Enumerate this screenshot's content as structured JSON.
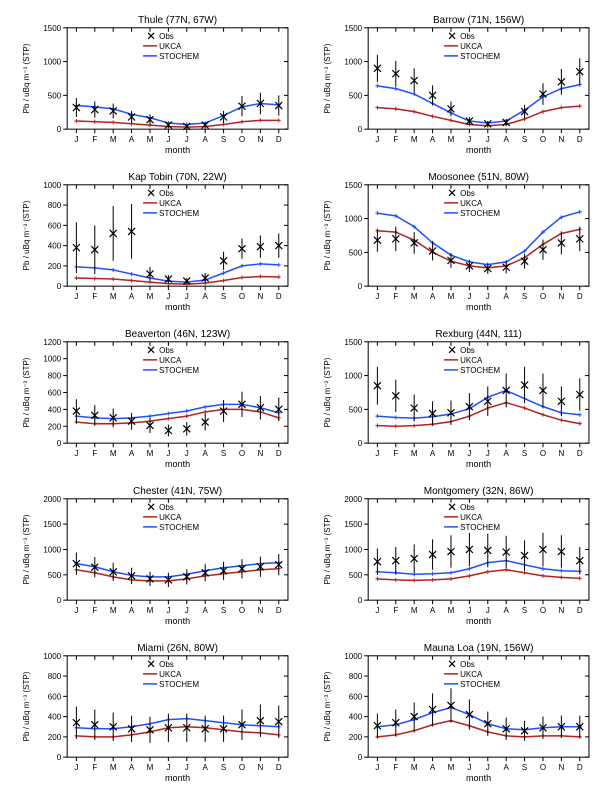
{
  "global": {
    "months": [
      "J",
      "F",
      "M",
      "A",
      "M",
      "J",
      "J",
      "A",
      "S",
      "O",
      "N",
      "D"
    ],
    "xlabel": "month",
    "ylabel": "Pb / uBq m⁻³ (STP)",
    "colors": {
      "obs": "#000000",
      "ukca": "#b22222",
      "stochem": "#1e50ff",
      "axis": "#000000",
      "bg": "#ffffff"
    },
    "legend": {
      "obs": "Obs",
      "ukca": "UKCA",
      "stochem": "STOCHEM"
    },
    "marker": "x",
    "title_fontsize": 10,
    "label_fontsize": 8
  },
  "panels": [
    {
      "title": "Thule (77N, 67W)",
      "ylim": [
        0,
        1500
      ],
      "ytick_step": 500,
      "obs": [
        320,
        290,
        270,
        180,
        140,
        60,
        40,
        60,
        180,
        340,
        380,
        350
      ],
      "obs_err": [
        140,
        120,
        110,
        90,
        80,
        40,
        30,
        40,
        90,
        150,
        160,
        150
      ],
      "ukca": [
        120,
        110,
        100,
        80,
        60,
        40,
        30,
        40,
        70,
        110,
        130,
        130
      ],
      "stochem": [
        350,
        330,
        300,
        220,
        170,
        90,
        70,
        90,
        200,
        330,
        380,
        360
      ]
    },
    {
      "title": "Barrow (71N, 156W)",
      "ylim": [
        0,
        1500
      ],
      "ytick_step": 500,
      "obs": [
        900,
        820,
        720,
        500,
        300,
        120,
        80,
        100,
        260,
        520,
        700,
        850
      ],
      "obs_err": [
        200,
        190,
        180,
        150,
        110,
        60,
        40,
        50,
        100,
        160,
        190,
        200
      ],
      "ukca": [
        320,
        300,
        260,
        190,
        130,
        70,
        50,
        70,
        150,
        260,
        320,
        340
      ],
      "stochem": [
        640,
        600,
        520,
        380,
        240,
        120,
        90,
        120,
        280,
        480,
        600,
        660
      ]
    },
    {
      "title": "Kap Tobin (70N, 22W)",
      "ylim": [
        0,
        1000
      ],
      "ytick_step": 200,
      "obs": [
        380,
        360,
        520,
        540,
        120,
        70,
        50,
        80,
        250,
        370,
        390,
        400
      ],
      "obs_err": [
        250,
        240,
        270,
        270,
        70,
        40,
        30,
        50,
        90,
        100,
        110,
        120
      ],
      "ukca": [
        80,
        75,
        70,
        55,
        40,
        25,
        20,
        30,
        55,
        85,
        95,
        90
      ],
      "stochem": [
        190,
        180,
        160,
        120,
        80,
        50,
        40,
        60,
        130,
        200,
        220,
        210
      ]
    },
    {
      "title": "Moosonee (51N, 80W)",
      "ylim": [
        0,
        1500
      ],
      "ytick_step": 500,
      "obs": [
        680,
        700,
        640,
        520,
        380,
        300,
        260,
        280,
        370,
        540,
        640,
        700
      ],
      "obs_err": [
        170,
        180,
        160,
        140,
        110,
        90,
        80,
        90,
        110,
        150,
        170,
        180
      ],
      "ukca": [
        820,
        800,
        680,
        500,
        370,
        300,
        270,
        300,
        420,
        620,
        780,
        840
      ],
      "stochem": [
        1080,
        1040,
        880,
        640,
        460,
        360,
        320,
        360,
        520,
        800,
        1020,
        1100
      ]
    },
    {
      "title": "Beaverton (46N, 123W)",
      "ylim": [
        0,
        1200
      ],
      "ytick_step": 200,
      "obs": [
        380,
        330,
        300,
        260,
        210,
        150,
        170,
        250,
        380,
        460,
        420,
        400
      ],
      "obs_err": [
        140,
        120,
        110,
        100,
        90,
        70,
        80,
        100,
        130,
        150,
        140,
        140
      ],
      "ukca": [
        250,
        230,
        230,
        240,
        260,
        290,
        320,
        370,
        400,
        400,
        370,
        300
      ],
      "stochem": [
        320,
        300,
        290,
        300,
        320,
        350,
        380,
        430,
        460,
        460,
        420,
        360
      ]
    },
    {
      "title": "Rexburg (44N, 111)",
      "ylim": [
        0,
        1500
      ],
      "ytick_step": 500,
      "obs": [
        850,
        700,
        520,
        440,
        450,
        540,
        620,
        780,
        860,
        780,
        620,
        720
      ],
      "obs_err": [
        280,
        240,
        200,
        180,
        180,
        200,
        220,
        250,
        270,
        250,
        220,
        240
      ],
      "ukca": [
        260,
        250,
        260,
        280,
        320,
        400,
        520,
        600,
        520,
        420,
        340,
        290
      ],
      "stochem": [
        400,
        380,
        370,
        390,
        430,
        510,
        680,
        780,
        660,
        540,
        450,
        420
      ]
    },
    {
      "title": "Chester (41N, 75W)",
      "ylim": [
        0,
        2000
      ],
      "ytick_step": 500,
      "obs": [
        720,
        650,
        560,
        480,
        420,
        400,
        460,
        540,
        580,
        620,
        660,
        700
      ],
      "obs_err": [
        220,
        200,
        180,
        160,
        140,
        140,
        150,
        170,
        180,
        190,
        200,
        210
      ],
      "ukca": [
        600,
        540,
        460,
        400,
        380,
        380,
        420,
        480,
        520,
        560,
        600,
        620
      ],
      "stochem": [
        720,
        660,
        560,
        490,
        460,
        460,
        510,
        580,
        640,
        680,
        720,
        740
      ]
    },
    {
      "title": "Montgomery (32N, 86W)",
      "ylim": [
        0,
        2000
      ],
      "ytick_step": 500,
      "obs": [
        760,
        780,
        820,
        900,
        960,
        1000,
        980,
        950,
        880,
        1000,
        960,
        780
      ],
      "obs_err": [
        260,
        270,
        280,
        300,
        320,
        330,
        330,
        320,
        300,
        330,
        320,
        270
      ],
      "ukca": [
        420,
        400,
        390,
        400,
        420,
        480,
        560,
        600,
        540,
        480,
        450,
        430
      ],
      "stochem": [
        560,
        540,
        510,
        520,
        540,
        620,
        740,
        780,
        700,
        620,
        580,
        570
      ]
    },
    {
      "title": "Miami (26N, 80W)",
      "ylim": [
        0,
        1000
      ],
      "ytick_step": 200,
      "obs": [
        340,
        320,
        300,
        280,
        270,
        290,
        290,
        280,
        280,
        320,
        360,
        350
      ],
      "obs_err": [
        160,
        150,
        140,
        130,
        130,
        140,
        140,
        130,
        130,
        150,
        160,
        160
      ],
      "ukca": [
        210,
        200,
        200,
        220,
        250,
        290,
        300,
        290,
        270,
        250,
        240,
        220
      ],
      "stochem": [
        290,
        280,
        280,
        300,
        330,
        370,
        380,
        360,
        340,
        320,
        310,
        300
      ]
    },
    {
      "title": "Mauna Loa (19N, 156W)",
      "ylim": [
        0,
        1000
      ],
      "ytick_step": 200,
      "obs": [
        310,
        340,
        400,
        470,
        510,
        420,
        330,
        280,
        260,
        290,
        300,
        300
      ],
      "obs_err": [
        120,
        130,
        140,
        160,
        170,
        150,
        120,
        110,
        100,
        110,
        110,
        110
      ],
      "ukca": [
        200,
        220,
        260,
        320,
        360,
        310,
        250,
        210,
        200,
        210,
        210,
        200
      ],
      "stochem": [
        300,
        320,
        370,
        440,
        490,
        420,
        330,
        280,
        270,
        290,
        300,
        300
      ]
    }
  ]
}
